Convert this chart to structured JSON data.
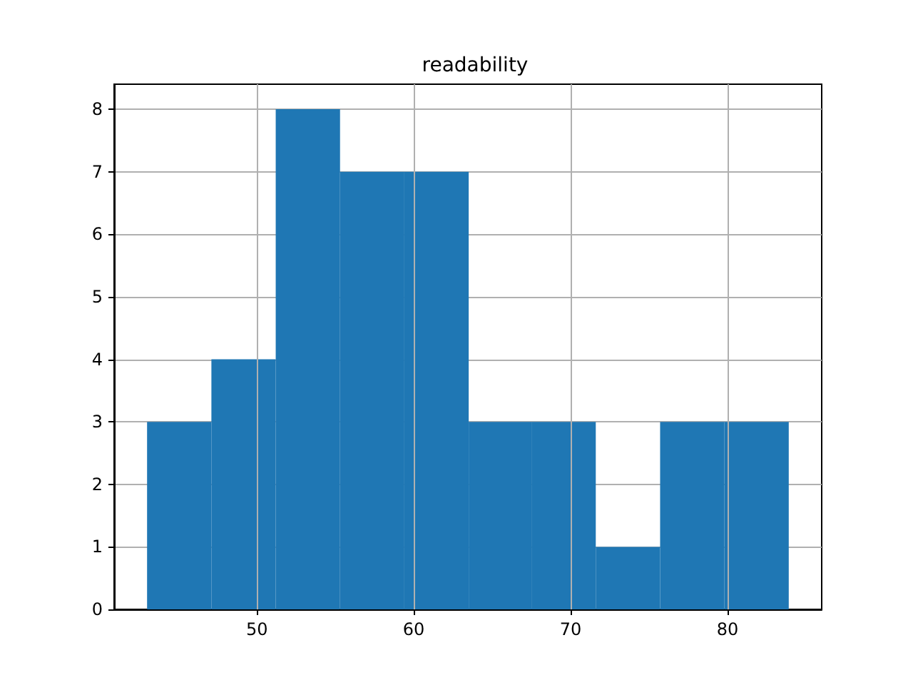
{
  "chart_data": {
    "type": "histogram",
    "title": "readability",
    "bins": [
      43.0,
      47.1,
      51.2,
      55.3,
      59.4,
      63.5,
      67.5,
      71.6,
      75.7,
      79.8,
      83.9
    ],
    "values": [
      3,
      4,
      8,
      7,
      7,
      3,
      3,
      1,
      3,
      3
    ],
    "color": "#1f77b4",
    "xlim": [
      40.9,
      86.0
    ],
    "xticks": [
      50,
      60,
      70,
      80
    ],
    "ylim": [
      0,
      8.4
    ],
    "yticks": [
      0,
      1,
      2,
      3,
      4,
      5,
      6,
      7,
      8
    ],
    "grid": true
  }
}
